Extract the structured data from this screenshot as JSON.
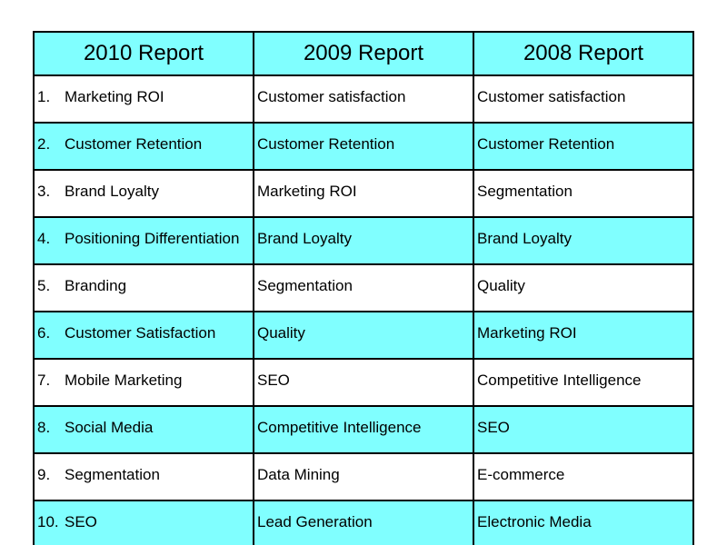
{
  "colors": {
    "header_bg": "#80ffff",
    "band_bg": "#80ffff",
    "plain_bg": "#ffffff",
    "border": "#000000"
  },
  "table": {
    "headers": [
      "2010 Report",
      "2009 Report",
      "2008 Report"
    ],
    "rows": [
      {
        "rank": "1.",
        "c2010": "Marketing ROI",
        "c2009": "Customer satisfaction",
        "c2008": "Customer satisfaction"
      },
      {
        "rank": "2.",
        "c2010": "Customer Retention",
        "c2009": "Customer Retention",
        "c2008": "Customer Retention"
      },
      {
        "rank": "3.",
        "c2010": "Brand Loyalty",
        "c2009": "Marketing ROI",
        "c2008": "Segmentation"
      },
      {
        "rank": "4.",
        "c2010": "Positioning Differentiation",
        "c2009": "Brand Loyalty",
        "c2008": "Brand Loyalty"
      },
      {
        "rank": "5.",
        "c2010": "Branding",
        "c2009": "Segmentation",
        "c2008": "Quality"
      },
      {
        "rank": "6.",
        "c2010": "Customer Satisfaction",
        "c2009": "Quality",
        "c2008": "Marketing ROI"
      },
      {
        "rank": "7.",
        "c2010": "Mobile Marketing",
        "c2009": "SEO",
        "c2008": "Competitive Intelligence"
      },
      {
        "rank": "8.",
        "c2010": "Social Media",
        "c2009": "Competitive Intelligence",
        "c2008": "SEO"
      },
      {
        "rank": "9.",
        "c2010": "Segmentation",
        "c2009": "Data Mining",
        "c2008": "E-commerce"
      },
      {
        "rank": "10.",
        "c2010": "SEO",
        "c2009": "Lead Generation",
        "c2008": "Electronic Media"
      }
    ]
  }
}
